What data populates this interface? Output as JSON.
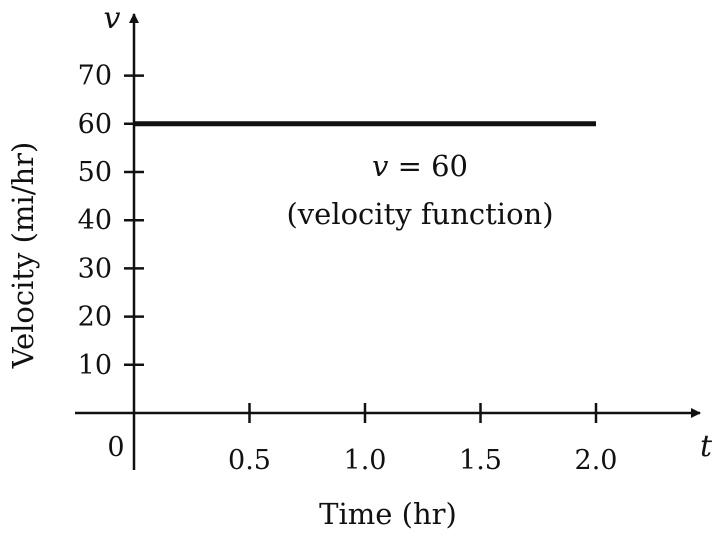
{
  "chart_data": {
    "type": "line",
    "title": "",
    "xlabel": "Time (hr)",
    "ylabel": "Velocity (mi/hr)",
    "x_axis_var": "t",
    "y_axis_var": "v",
    "origin_label": "0",
    "xlim": [
      0,
      2.35
    ],
    "ylim": [
      0,
      80
    ],
    "x_ticks": [
      {
        "value": 0.5,
        "label": "0.5"
      },
      {
        "value": 1.0,
        "label": "1.0"
      },
      {
        "value": 1.5,
        "label": "1.5"
      },
      {
        "value": 2.0,
        "label": "2.0"
      }
    ],
    "y_ticks": [
      {
        "value": 10,
        "label": "10"
      },
      {
        "value": 20,
        "label": "20"
      },
      {
        "value": 30,
        "label": "30"
      },
      {
        "value": 40,
        "label": "40"
      },
      {
        "value": 50,
        "label": "50"
      },
      {
        "value": 60,
        "label": "60"
      },
      {
        "value": 70,
        "label": "70"
      }
    ],
    "series": [
      {
        "x": [
          0,
          2.0
        ],
        "y": [
          60,
          60
        ]
      }
    ],
    "annotation": {
      "var": "v",
      "rest": " = 60",
      "line2": "(velocity function)"
    },
    "grid": false,
    "legend": "none",
    "colors": {
      "line": "#111111",
      "axis": "#111111"
    }
  }
}
